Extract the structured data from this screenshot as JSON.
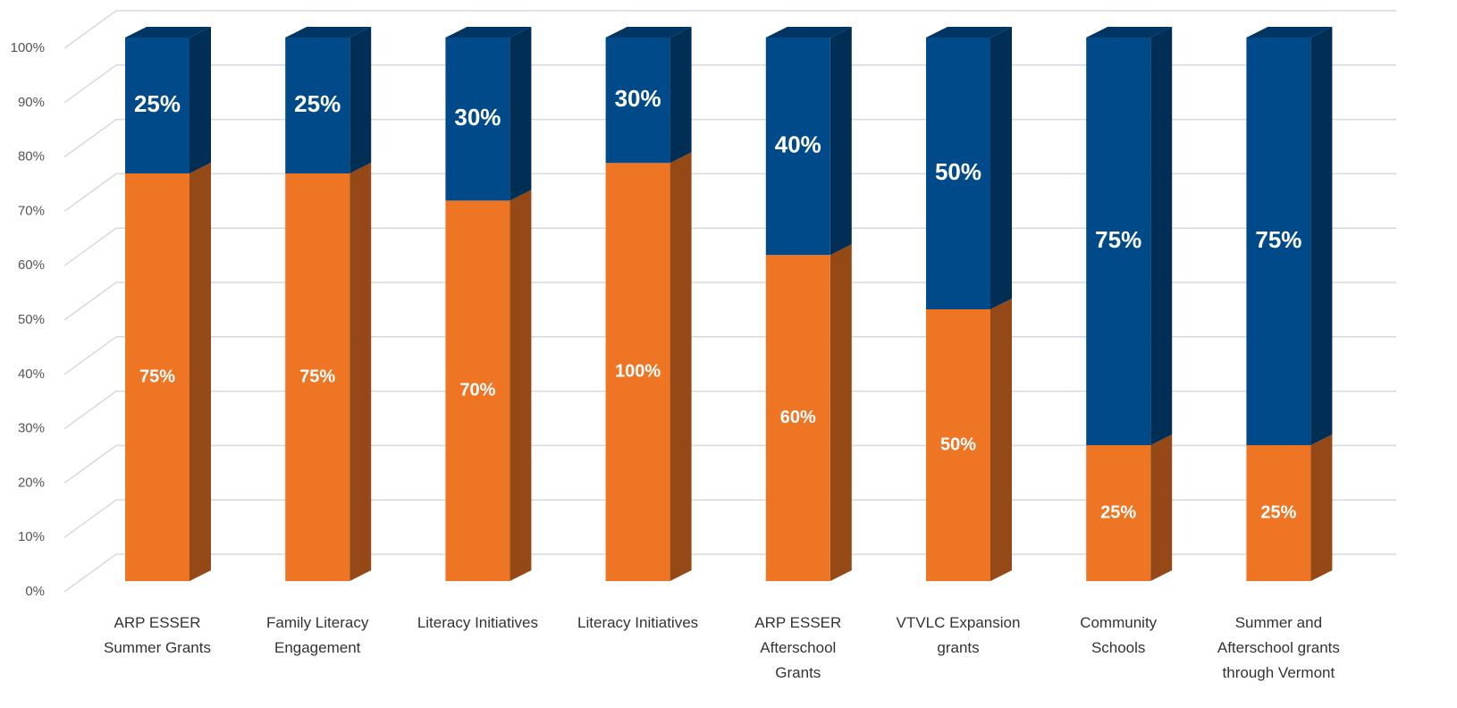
{
  "chart_data": {
    "type": "bar",
    "stacking": "percent",
    "categories": [
      "ARP ESSER Summer Grants",
      "Family Literacy Engagement",
      "Literacy Initiatives",
      "Literacy Initiatives",
      "ARP ESSER Afterschool Grants",
      "VTVLC Expansion grants",
      "Community Schools",
      "Summer and Afterschool grants through Vermont"
    ],
    "series": [
      {
        "color": "#ee7524",
        "values": [
          75,
          75,
          70,
          100,
          60,
          50,
          25,
          25
        ],
        "value_labels": [
          "75%",
          "75%",
          "70%",
          "100%",
          "60%",
          "50%",
          "25%",
          "25%"
        ]
      },
      {
        "color": "#014a89",
        "values": [
          25,
          25,
          30,
          30,
          40,
          50,
          75,
          75
        ],
        "value_labels": [
          "25%",
          "25%",
          "30%",
          "30%",
          "40%",
          "50%",
          "75%",
          "75%"
        ]
      }
    ],
    "ylim": [
      0,
      100
    ],
    "yticks": [
      {
        "value": 0,
        "label": "0%"
      },
      {
        "value": 10,
        "label": "10%"
      },
      {
        "value": 20,
        "label": "20%"
      },
      {
        "value": 30,
        "label": "30%"
      },
      {
        "value": 40,
        "label": "40%"
      },
      {
        "value": 50,
        "label": "50%"
      },
      {
        "value": 60,
        "label": "60%"
      },
      {
        "value": 70,
        "label": "70%"
      },
      {
        "value": 80,
        "label": "80%"
      },
      {
        "value": 90,
        "label": "90%"
      },
      {
        "value": 100,
        "label": "100%"
      }
    ],
    "grid": true
  }
}
